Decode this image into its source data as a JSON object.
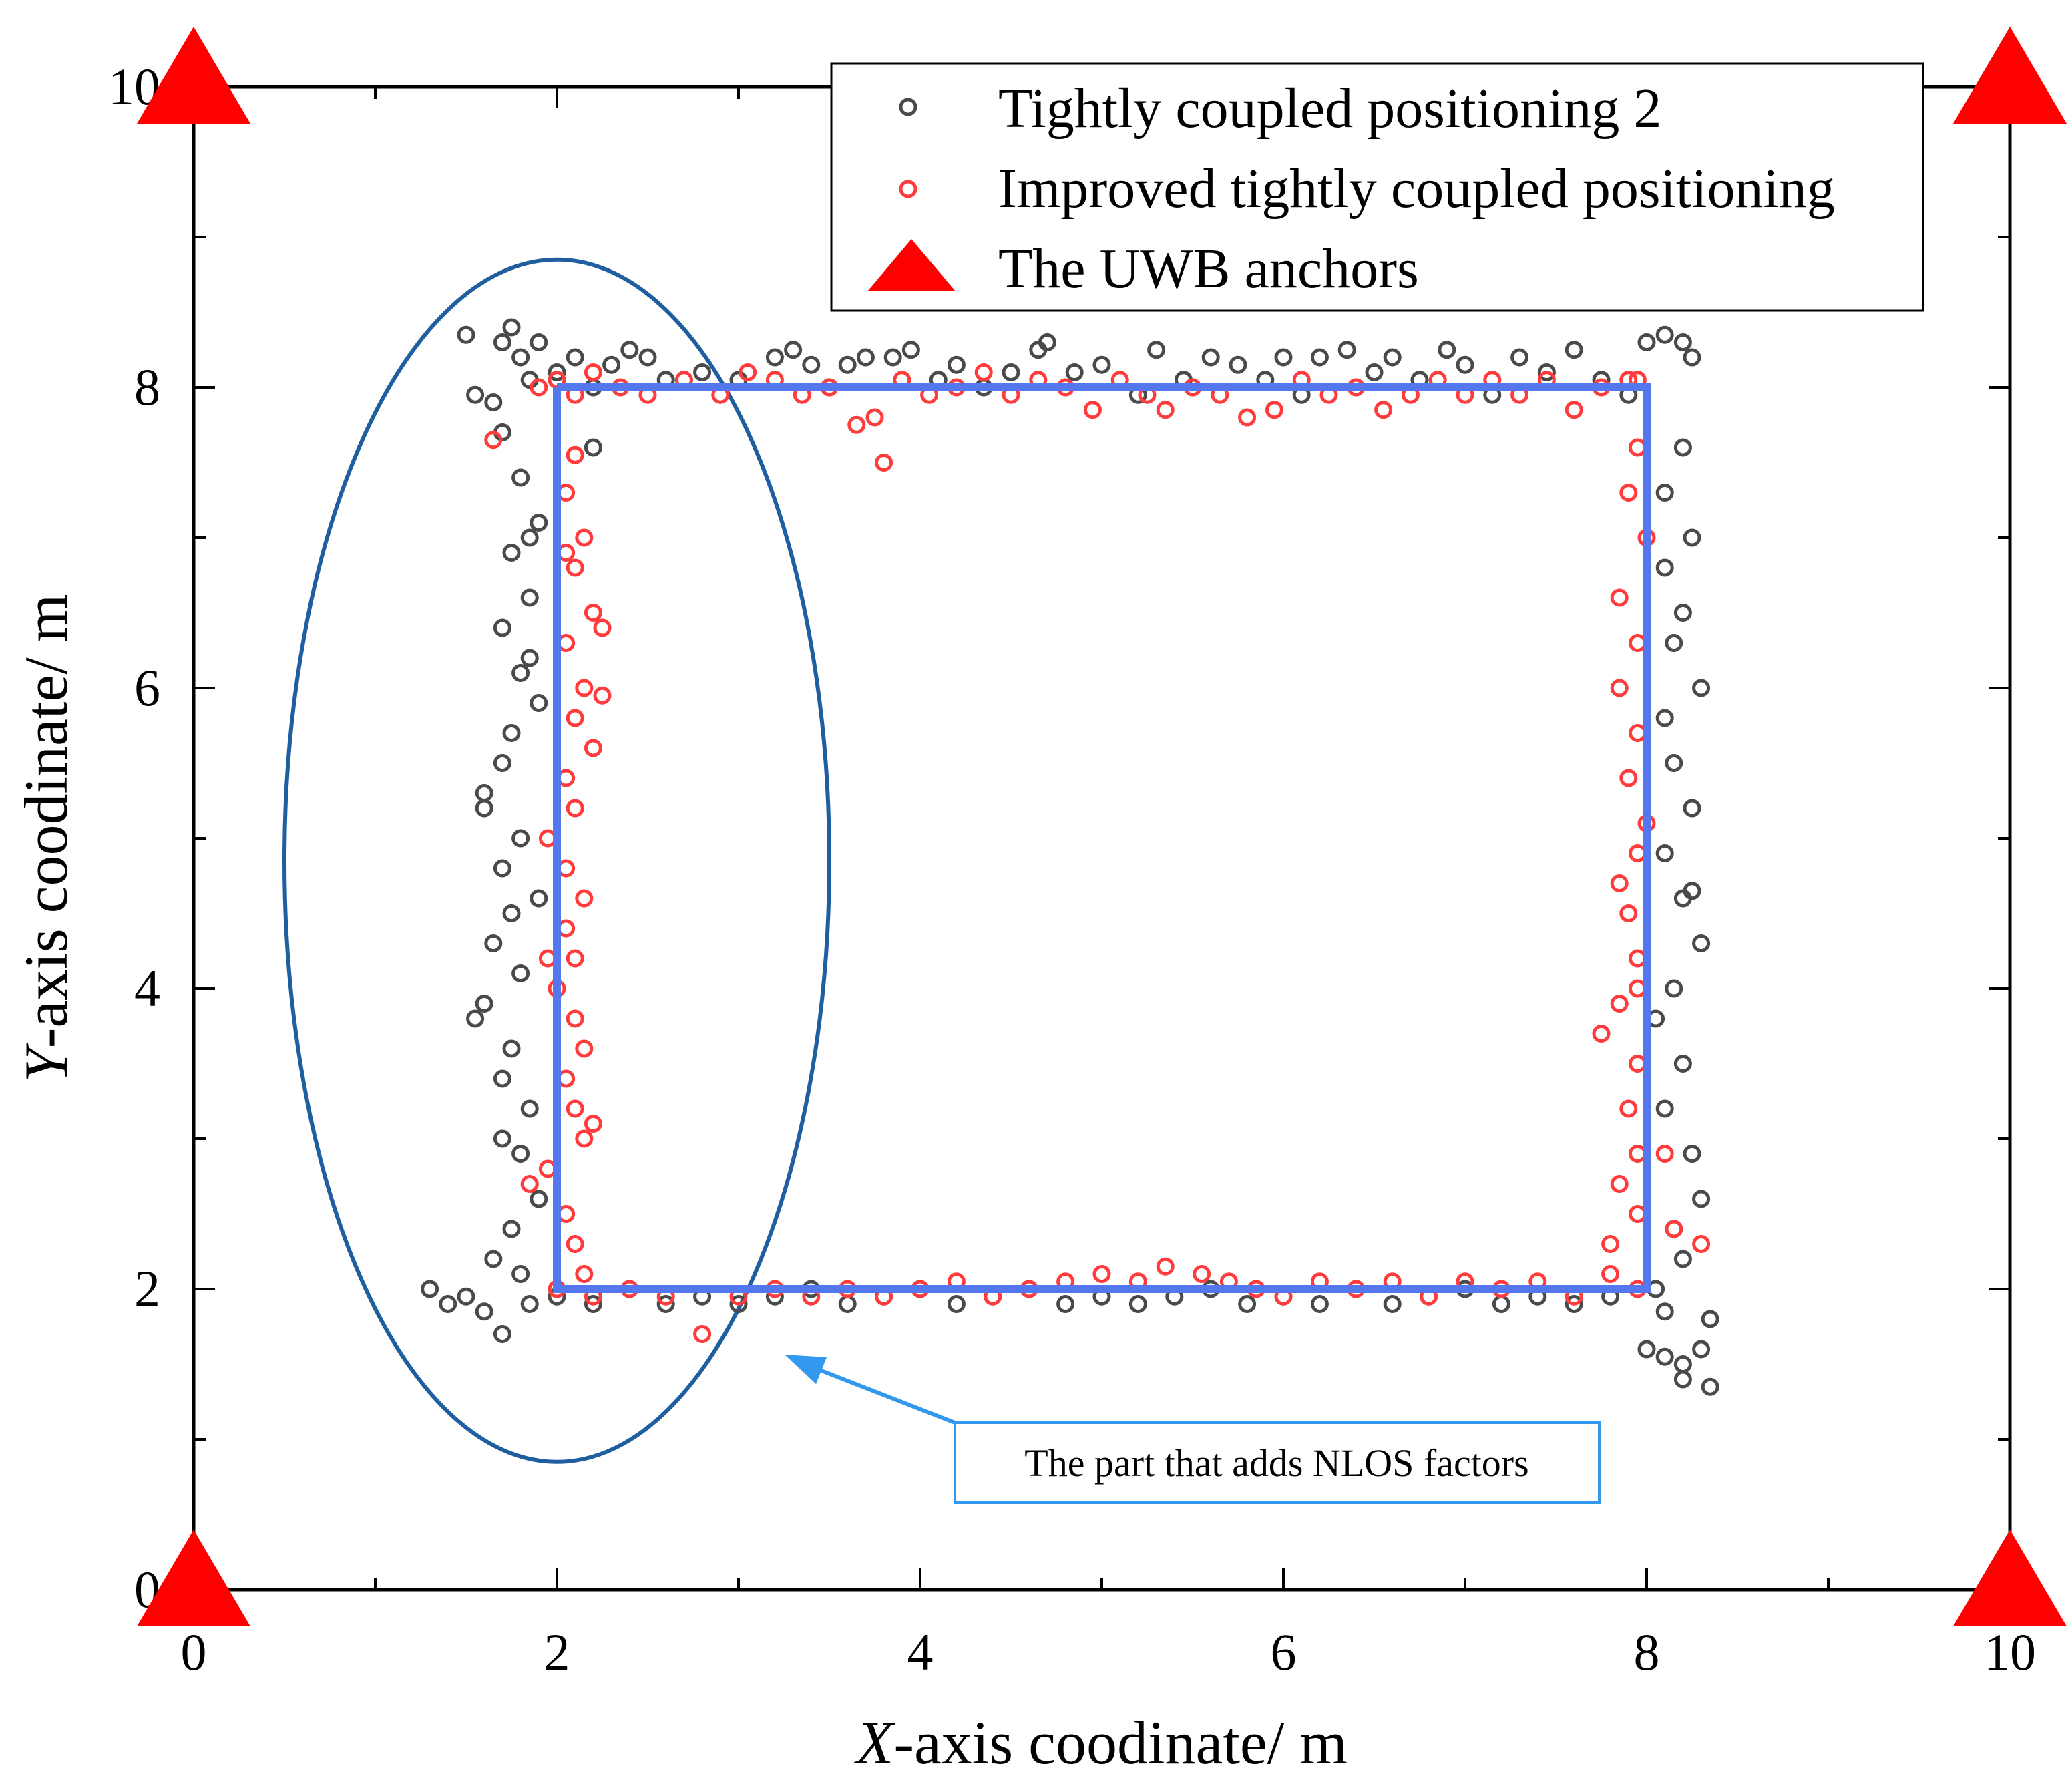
{
  "chart_data": {
    "type": "scatter",
    "title": "",
    "xlabel_italic": "X",
    "xlabel_rest": "-axis coodinate/ m",
    "ylabel_italic": "Y",
    "ylabel_rest": "-axis coodinate/ m",
    "xlim": [
      0,
      10
    ],
    "ylim": [
      0,
      10
    ],
    "xticks": [
      "0",
      "2",
      "4",
      "6",
      "8",
      "10"
    ],
    "yticks": [
      "0",
      "2",
      "4",
      "6",
      "8",
      "10"
    ],
    "xtick_values": [
      0,
      2,
      4,
      6,
      8,
      10
    ],
    "ytick_values": [
      0,
      2,
      4,
      6,
      8,
      10
    ],
    "grid": false,
    "legend_position": "top-right",
    "legend": [
      {
        "label": "Tightly coupled positioning 2",
        "marker": "open-circle",
        "color": "#4a4a4a"
      },
      {
        "label": "Improved tightly coupled positioning",
        "marker": "open-circle",
        "color": "#ff3b3b"
      },
      {
        "label": "The UWB anchors",
        "marker": "filled-triangle",
        "color": "#ff0000"
      }
    ],
    "reference_path": {
      "name": "reference trajectory",
      "color": "#5577ee",
      "points": [
        [
          2,
          8
        ],
        [
          8,
          8
        ],
        [
          8,
          2
        ],
        [
          2,
          2
        ],
        [
          2,
          8
        ]
      ]
    },
    "anchors": {
      "name": "The UWB anchors",
      "color": "#ff0000",
      "points": [
        [
          0,
          0
        ],
        [
          0,
          10
        ],
        [
          10,
          10
        ],
        [
          10,
          0
        ]
      ]
    },
    "series": [
      {
        "name": "Tightly coupled positioning 2",
        "color": "#4a4a4a",
        "points": [
          [
            1.5,
            8.35
          ],
          [
            1.55,
            7.95
          ],
          [
            1.65,
            7.9
          ],
          [
            1.7,
            8.3
          ],
          [
            1.75,
            8.4
          ],
          [
            1.8,
            8.2
          ],
          [
            1.85,
            8.05
          ],
          [
            1.9,
            8.3
          ],
          [
            2.0,
            8.1
          ],
          [
            2.1,
            8.2
          ],
          [
            2.2,
            8.0
          ],
          [
            2.3,
            8.15
          ],
          [
            2.4,
            8.25
          ],
          [
            2.5,
            8.2
          ],
          [
            2.6,
            8.05
          ],
          [
            2.8,
            8.1
          ],
          [
            3.0,
            8.05
          ],
          [
            3.2,
            8.2
          ],
          [
            3.3,
            8.25
          ],
          [
            3.4,
            8.15
          ],
          [
            3.5,
            8.0
          ],
          [
            3.6,
            8.15
          ],
          [
            3.7,
            8.2
          ],
          [
            3.85,
            8.2
          ],
          [
            3.95,
            8.25
          ],
          [
            4.1,
            8.05
          ],
          [
            4.2,
            8.15
          ],
          [
            4.35,
            8.0
          ],
          [
            4.5,
            8.1
          ],
          [
            4.65,
            8.25
          ],
          [
            4.7,
            8.3
          ],
          [
            4.85,
            8.1
          ],
          [
            5.0,
            8.15
          ],
          [
            5.2,
            7.95
          ],
          [
            5.3,
            8.25
          ],
          [
            5.45,
            8.05
          ],
          [
            5.6,
            8.2
          ],
          [
            5.75,
            8.15
          ],
          [
            5.9,
            8.05
          ],
          [
            6.0,
            8.2
          ],
          [
            6.1,
            7.95
          ],
          [
            6.2,
            8.2
          ],
          [
            6.35,
            8.25
          ],
          [
            6.5,
            8.1
          ],
          [
            6.6,
            8.2
          ],
          [
            6.75,
            8.05
          ],
          [
            6.9,
            8.25
          ],
          [
            7.0,
            8.15
          ],
          [
            7.15,
            7.95
          ],
          [
            7.3,
            8.2
          ],
          [
            7.45,
            8.1
          ],
          [
            7.6,
            8.25
          ],
          [
            7.75,
            8.05
          ],
          [
            7.9,
            7.95
          ],
          [
            8.0,
            8.3
          ],
          [
            8.1,
            8.35
          ],
          [
            8.2,
            8.3
          ],
          [
            8.25,
            8.2
          ],
          [
            2.2,
            7.6
          ],
          [
            1.7,
            7.7
          ],
          [
            1.8,
            7.4
          ],
          [
            1.9,
            7.1
          ],
          [
            1.75,
            6.9
          ],
          [
            1.85,
            6.6
          ],
          [
            1.7,
            6.4
          ],
          [
            1.8,
            6.1
          ],
          [
            1.9,
            5.9
          ],
          [
            1.75,
            5.7
          ],
          [
            1.7,
            5.5
          ],
          [
            1.6,
            5.2
          ],
          [
            1.8,
            5.0
          ],
          [
            1.7,
            4.8
          ],
          [
            1.75,
            4.5
          ],
          [
            1.65,
            4.3
          ],
          [
            1.8,
            4.1
          ],
          [
            1.6,
            3.9
          ],
          [
            1.55,
            3.8
          ],
          [
            1.75,
            3.6
          ],
          [
            1.7,
            3.4
          ],
          [
            1.85,
            3.2
          ],
          [
            1.8,
            2.9
          ],
          [
            1.9,
            2.6
          ],
          [
            1.75,
            2.4
          ],
          [
            1.65,
            2.2
          ],
          [
            1.8,
            2.1
          ],
          [
            1.85,
            6.2
          ],
          [
            1.9,
            4.6
          ],
          [
            1.7,
            3.0
          ],
          [
            1.6,
            5.3
          ],
          [
            1.85,
            7.0
          ],
          [
            1.3,
            2.0
          ],
          [
            1.4,
            1.9
          ],
          [
            1.5,
            1.95
          ],
          [
            1.6,
            1.85
          ],
          [
            1.7,
            1.7
          ],
          [
            1.85,
            1.9
          ],
          [
            2.0,
            1.95
          ],
          [
            2.2,
            1.9
          ],
          [
            2.4,
            2.0
          ],
          [
            2.6,
            1.9
          ],
          [
            2.8,
            1.95
          ],
          [
            3.0,
            1.9
          ],
          [
            3.2,
            1.95
          ],
          [
            3.4,
            2.0
          ],
          [
            3.6,
            1.9
          ],
          [
            3.8,
            1.95
          ],
          [
            4.0,
            2.0
          ],
          [
            4.2,
            1.9
          ],
          [
            4.4,
            1.95
          ],
          [
            4.6,
            2.0
          ],
          [
            4.8,
            1.9
          ],
          [
            5.0,
            1.95
          ],
          [
            5.2,
            1.9
          ],
          [
            5.4,
            1.95
          ],
          [
            5.6,
            2.0
          ],
          [
            5.8,
            1.9
          ],
          [
            6.0,
            1.95
          ],
          [
            6.2,
            1.9
          ],
          [
            6.4,
            2.0
          ],
          [
            6.6,
            1.9
          ],
          [
            6.8,
            1.95
          ],
          [
            7.0,
            2.0
          ],
          [
            7.2,
            1.9
          ],
          [
            7.4,
            1.95
          ],
          [
            7.6,
            1.9
          ],
          [
            7.8,
            1.95
          ],
          [
            8.2,
            7.6
          ],
          [
            8.1,
            7.3
          ],
          [
            8.25,
            7.0
          ],
          [
            8.1,
            6.8
          ],
          [
            8.2,
            6.5
          ],
          [
            8.3,
            6.0
          ],
          [
            8.1,
            5.8
          ],
          [
            8.15,
            5.5
          ],
          [
            8.25,
            5.2
          ],
          [
            8.1,
            4.9
          ],
          [
            8.2,
            4.6
          ],
          [
            8.3,
            4.3
          ],
          [
            8.15,
            4.0
          ],
          [
            8.05,
            3.8
          ],
          [
            8.2,
            3.5
          ],
          [
            8.1,
            3.2
          ],
          [
            8.25,
            2.9
          ],
          [
            8.3,
            2.6
          ],
          [
            8.15,
            2.4
          ],
          [
            8.2,
            2.2
          ],
          [
            8.05,
            2.0
          ],
          [
            8.1,
            1.85
          ],
          [
            8.0,
            1.6
          ],
          [
            8.1,
            1.55
          ],
          [
            8.2,
            1.5
          ],
          [
            8.3,
            1.6
          ],
          [
            8.35,
            1.8
          ],
          [
            8.35,
            1.35
          ],
          [
            8.2,
            1.4
          ],
          [
            8.25,
            4.65
          ],
          [
            8.15,
            6.3
          ]
        ]
      },
      {
        "name": "Improved tightly coupled positioning",
        "color": "#ff3b3b",
        "points": [
          [
            1.65,
            7.65
          ],
          [
            1.9,
            8.0
          ],
          [
            2.0,
            8.05
          ],
          [
            2.1,
            7.95
          ],
          [
            2.2,
            8.1
          ],
          [
            2.35,
            8.0
          ],
          [
            2.5,
            7.95
          ],
          [
            2.7,
            8.05
          ],
          [
            2.9,
            7.95
          ],
          [
            3.05,
            8.1
          ],
          [
            3.2,
            8.05
          ],
          [
            3.35,
            7.95
          ],
          [
            3.5,
            8.0
          ],
          [
            3.65,
            7.75
          ],
          [
            3.75,
            7.8
          ],
          [
            3.8,
            7.5
          ],
          [
            3.9,
            8.05
          ],
          [
            4.05,
            7.95
          ],
          [
            4.2,
            8.0
          ],
          [
            4.35,
            8.1
          ],
          [
            4.5,
            7.95
          ],
          [
            4.65,
            8.05
          ],
          [
            4.8,
            8.0
          ],
          [
            4.95,
            7.85
          ],
          [
            5.1,
            8.05
          ],
          [
            5.25,
            7.95
          ],
          [
            5.35,
            7.85
          ],
          [
            5.5,
            8.0
          ],
          [
            5.65,
            7.95
          ],
          [
            5.8,
            7.8
          ],
          [
            5.95,
            7.85
          ],
          [
            6.1,
            8.05
          ],
          [
            6.25,
            7.95
          ],
          [
            6.4,
            8.0
          ],
          [
            6.55,
            7.85
          ],
          [
            6.7,
            7.95
          ],
          [
            6.85,
            8.05
          ],
          [
            7.0,
            7.95
          ],
          [
            7.15,
            8.05
          ],
          [
            7.3,
            7.95
          ],
          [
            7.45,
            8.05
          ],
          [
            7.6,
            7.85
          ],
          [
            7.75,
            8.0
          ],
          [
            7.9,
            8.05
          ],
          [
            2.1,
            7.55
          ],
          [
            2.05,
            7.3
          ],
          [
            2.15,
            7.0
          ],
          [
            2.1,
            6.8
          ],
          [
            2.2,
            6.5
          ],
          [
            2.05,
            6.3
          ],
          [
            2.15,
            6.0
          ],
          [
            2.1,
            5.8
          ],
          [
            2.2,
            5.6
          ],
          [
            2.05,
            5.4
          ],
          [
            2.1,
            5.2
          ],
          [
            1.95,
            5.0
          ],
          [
            2.05,
            4.8
          ],
          [
            2.15,
            4.6
          ],
          [
            2.05,
            4.4
          ],
          [
            2.1,
            4.2
          ],
          [
            2.0,
            4.0
          ],
          [
            2.1,
            3.8
          ],
          [
            2.15,
            3.6
          ],
          [
            2.05,
            3.4
          ],
          [
            2.1,
            3.2
          ],
          [
            2.15,
            3.0
          ],
          [
            1.95,
            2.8
          ],
          [
            1.85,
            2.7
          ],
          [
            2.05,
            2.5
          ],
          [
            2.1,
            2.3
          ],
          [
            2.15,
            2.1
          ],
          [
            2.25,
            6.4
          ],
          [
            2.25,
            5.95
          ],
          [
            2.2,
            3.1
          ],
          [
            1.95,
            4.2
          ],
          [
            2.05,
            6.9
          ],
          [
            2.0,
            2.0
          ],
          [
            2.2,
            1.95
          ],
          [
            2.4,
            2.0
          ],
          [
            2.6,
            1.95
          ],
          [
            2.8,
            1.7
          ],
          [
            3.0,
            1.95
          ],
          [
            3.2,
            2.0
          ],
          [
            3.4,
            1.95
          ],
          [
            3.6,
            2.0
          ],
          [
            3.8,
            1.95
          ],
          [
            4.0,
            2.0
          ],
          [
            4.2,
            2.05
          ],
          [
            4.4,
            1.95
          ],
          [
            4.6,
            2.0
          ],
          [
            4.8,
            2.05
          ],
          [
            5.0,
            2.1
          ],
          [
            5.2,
            2.05
          ],
          [
            5.35,
            2.15
          ],
          [
            5.55,
            2.1
          ],
          [
            5.7,
            2.05
          ],
          [
            5.85,
            2.0
          ],
          [
            6.0,
            1.95
          ],
          [
            6.2,
            2.05
          ],
          [
            6.4,
            2.0
          ],
          [
            6.6,
            2.05
          ],
          [
            6.8,
            1.95
          ],
          [
            7.0,
            2.05
          ],
          [
            7.2,
            2.0
          ],
          [
            7.4,
            2.05
          ],
          [
            7.6,
            1.95
          ],
          [
            7.8,
            2.1
          ],
          [
            7.95,
            2.0
          ],
          [
            7.95,
            8.05
          ],
          [
            7.95,
            7.6
          ],
          [
            7.9,
            7.3
          ],
          [
            8.0,
            7.0
          ],
          [
            7.85,
            6.6
          ],
          [
            7.95,
            6.3
          ],
          [
            7.85,
            6.0
          ],
          [
            7.95,
            5.7
          ],
          [
            7.9,
            5.4
          ],
          [
            8.0,
            5.1
          ],
          [
            7.95,
            4.9
          ],
          [
            7.85,
            4.7
          ],
          [
            7.9,
            4.5
          ],
          [
            7.95,
            4.2
          ],
          [
            7.85,
            3.9
          ],
          [
            7.75,
            3.7
          ],
          [
            7.95,
            3.5
          ],
          [
            7.9,
            3.2
          ],
          [
            7.95,
            2.9
          ],
          [
            7.85,
            2.7
          ],
          [
            7.95,
            2.5
          ],
          [
            7.8,
            2.3
          ],
          [
            8.1,
            2.9
          ],
          [
            8.15,
            2.4
          ],
          [
            8.3,
            2.3
          ],
          [
            7.95,
            4.0
          ]
        ]
      }
    ],
    "annotation": {
      "text": "The part that adds NLOS factors",
      "ellipse_color": "#1f5fa0",
      "arrow_color": "#3399ee",
      "ellipse_center": [
        2.0,
        4.85
      ],
      "ellipse_radii": [
        1.5,
        4.0
      ],
      "arrow_target": [
        3.3,
        1.55
      ]
    }
  }
}
